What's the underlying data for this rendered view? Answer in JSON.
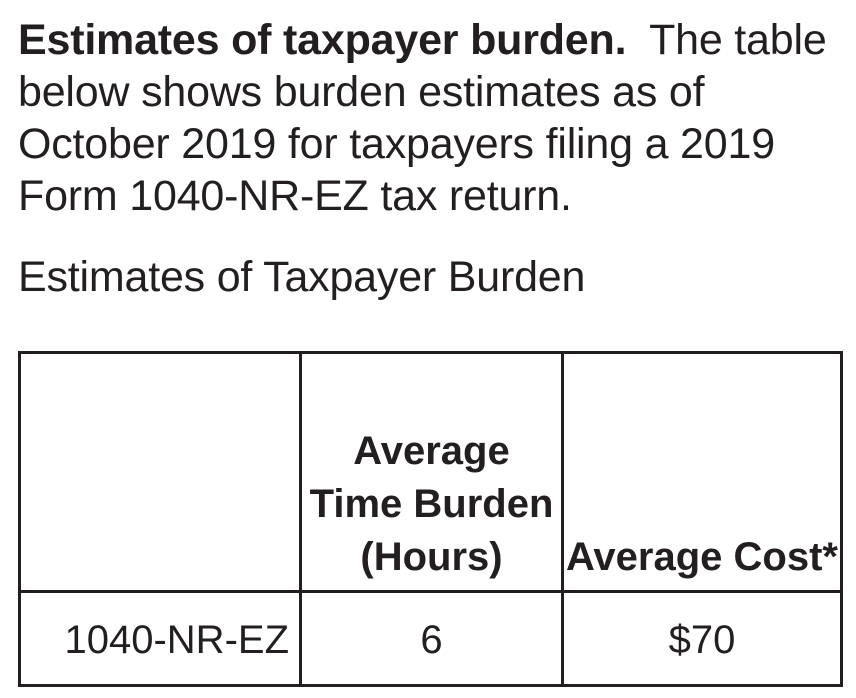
{
  "intro": {
    "lead": "Estimates of taxpayer burden.",
    "body": "The table below shows burden estimates as of October 2019 for taxpayers filing a 2019 Form 1040-NR-EZ tax return."
  },
  "table": {
    "heading": "Estimates of Taxpayer Burden",
    "columns": [
      "",
      "Average Time Burden (Hours)",
      "Average Cost*"
    ],
    "rows": [
      {
        "form": "1040-NR-EZ",
        "time": "6",
        "cost": "$70"
      }
    ]
  }
}
